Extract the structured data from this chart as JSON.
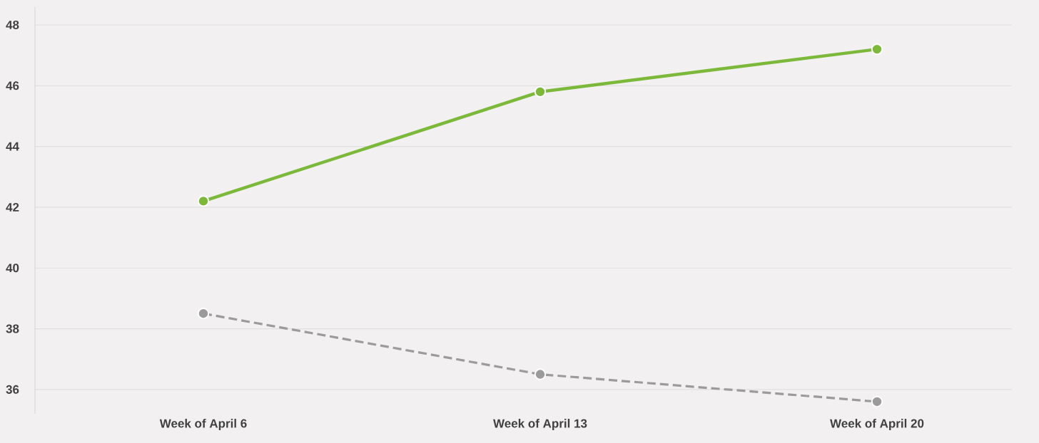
{
  "chart_data": {
    "type": "line",
    "categories": [
      "Week of April 6",
      "Week of April 13",
      "Week of April 20"
    ],
    "series": [
      {
        "color": "#7cb83a",
        "values": [
          42.2,
          45.8,
          47.2
        ],
        "line_style": "solid"
      },
      {
        "color": "#9b9b9b",
        "values": [
          38.5,
          36.5,
          35.6
        ],
        "line_style": "dashed"
      }
    ],
    "ylim": [
      35.2,
      48.6
    ],
    "yticks": [
      36,
      38,
      40,
      42,
      44,
      46,
      48
    ],
    "grid": "y",
    "marker": "circle"
  }
}
